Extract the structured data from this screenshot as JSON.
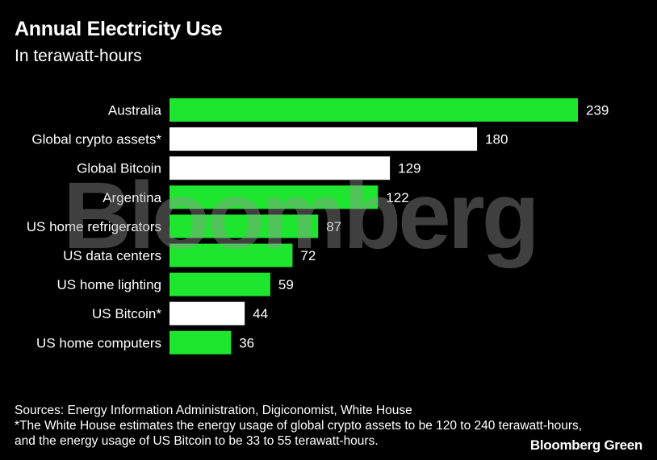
{
  "header": {
    "title": "Annual Electricity Use",
    "subtitle": "In terawatt-hours"
  },
  "watermark": "Bloomberg",
  "footer": {
    "sources": "Sources: Energy Information Administration, Digiconomist, White House",
    "note": "*The White House estimates the energy usage of global crypto assets to be 120 to 240 terawatt-hours, and the energy usage of US Bitcoin to be 33 to 55 terawatt-hours.",
    "brand": "Bloomberg Green"
  },
  "colors": {
    "background": "#000000",
    "green": "#1ee62e",
    "white": "#ffffff"
  },
  "chart_data": {
    "type": "bar",
    "orientation": "horizontal",
    "title": "Annual Electricity Use",
    "subtitle": "In terawatt-hours",
    "categories": [
      "Australia",
      "Global crypto assets*",
      "Global Bitcoin",
      "Argentina",
      "US home refrigerators",
      "US data centers",
      "US home lighting",
      "US Bitcoin*",
      "US home computers"
    ],
    "values": [
      239,
      180,
      129,
      122,
      87,
      72,
      59,
      44,
      36
    ],
    "bar_colors": [
      "green",
      "white",
      "white",
      "green",
      "green",
      "green",
      "green",
      "white",
      "green"
    ],
    "xlim": [
      0,
      239
    ],
    "grid": false,
    "data_labels": true
  }
}
